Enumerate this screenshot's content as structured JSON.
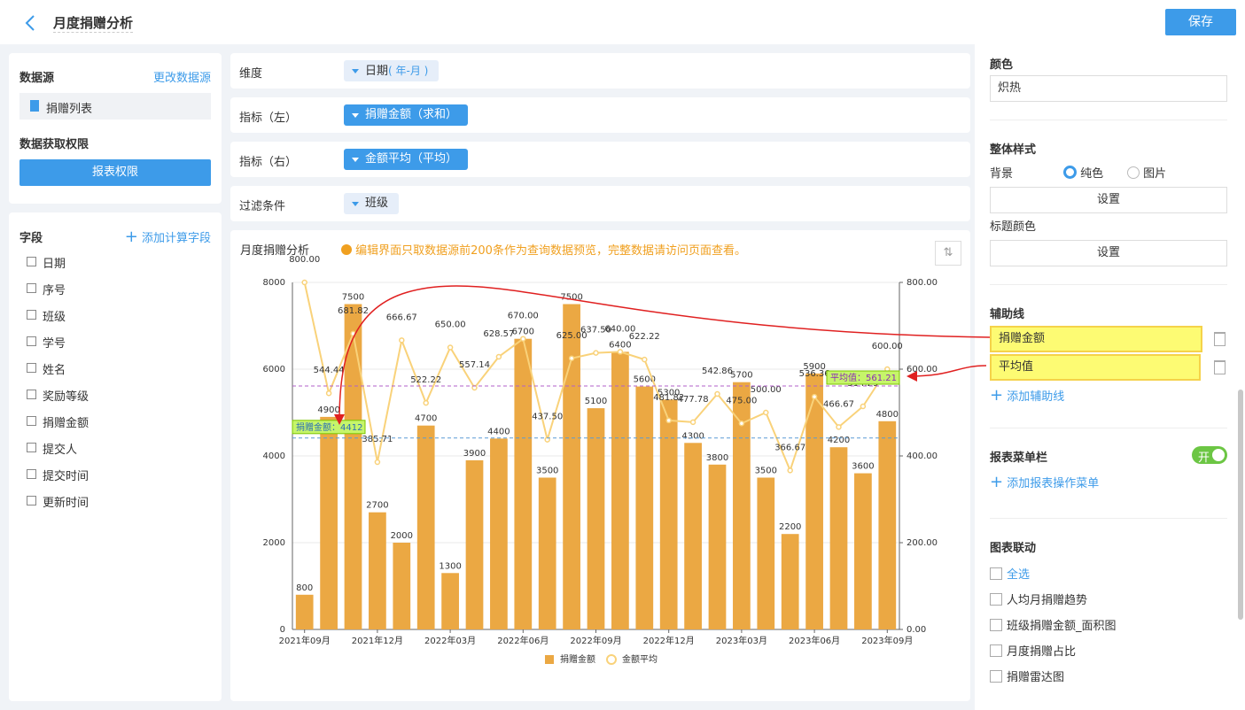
{
  "header": {
    "title": "月度捐赠分析",
    "save": "保存"
  },
  "left_panel": {
    "source_label": "数据源",
    "change_source": "更改数据源",
    "source_name": "捐赠列表",
    "permission_label": "数据获取权限",
    "permission_button": "报表权限",
    "fields_label": "字段",
    "add_field": "添加计算字段",
    "fields": [
      "日期",
      "序号",
      "班级",
      "学号",
      "姓名",
      "奖励等级",
      "捐赠金额",
      "提交人",
      "提交时间",
      "更新时间"
    ]
  },
  "config": {
    "rows": [
      {
        "label": "维度",
        "value": "日期",
        "suffix": "( 年-月 )"
      },
      {
        "label": "指标（左）",
        "value": "捐赠金额（求和）"
      },
      {
        "label": "指标（右）",
        "value": "金额平均（平均）"
      },
      {
        "label": "过滤条件",
        "value": "班级"
      }
    ]
  },
  "chart_panel": {
    "title": "月度捐赠分析",
    "notice": "编辑界面只取数据源前200条作为查询数据预览，完整数据请访问页面查看。"
  },
  "chart_data": {
    "type": "bar",
    "categories": [
      "2021年09月",
      null,
      null,
      "2021年12月",
      null,
      null,
      "2022年03月",
      null,
      null,
      "2022年06月",
      null,
      null,
      "2022年09月",
      null,
      null,
      "2022年12月",
      null,
      null,
      "2023年03月",
      null,
      null,
      "2023年06月",
      null,
      null,
      "2023年09月"
    ],
    "series": [
      {
        "name": "捐赠金额",
        "color": "#eba843",
        "values": [
          800,
          4900,
          7500,
          2700,
          2000,
          4700,
          1300,
          3900,
          4400,
          6700,
          3500,
          7500,
          5100,
          6400,
          5600,
          5300,
          4300,
          3800,
          5700,
          3500,
          2200,
          5900,
          4200,
          3600,
          4800
        ]
      },
      {
        "name": "金额平均",
        "type": "line",
        "axis": "y2",
        "color": "#f9d27a",
        "values": [
          800,
          544.44,
          681.82,
          385.71,
          666.67,
          522.22,
          650,
          557.14,
          628.57,
          670,
          437.5,
          625,
          637.5,
          640,
          622.22,
          481.82,
          477.78,
          542.86,
          475,
          500,
          366.67,
          536.36,
          466.67,
          514.29,
          600
        ],
        "value_labels": [
          "800.00",
          "544.44",
          "681.82",
          "385.71",
          "666.67",
          "522.22",
          "650.00",
          "557.14",
          "628.57",
          "670.00",
          "437.50",
          "625.00",
          "637.50",
          "640.00",
          "622.22",
          "481.82",
          "477.78",
          "542.86",
          "475.00",
          "500.00",
          "366.67",
          "536.36",
          "466.67",
          "514.29",
          "600.00"
        ]
      }
    ],
    "ylim": [
      0,
      8000
    ],
    "yticks": [
      0,
      2000,
      4000,
      6000,
      8000
    ],
    "y2lim": [
      0,
      800
    ],
    "y2ticks": [
      {
        "value": 0,
        "label": "0.00"
      },
      {
        "value": 200,
        "label": "200.00"
      },
      {
        "value": 400,
        "label": "400.00"
      },
      {
        "value": 600,
        "label": "600.00"
      },
      {
        "value": 800,
        "label": "800.00"
      }
    ],
    "grid": true,
    "mark_lines": [
      {
        "value": 4412,
        "label": "捐赠金额：4412",
        "color": "#5b9bd5"
      },
      {
        "value": 561.21,
        "axis": "y2",
        "label": "平均值：561.21",
        "color": "#b05fc9"
      }
    ]
  },
  "right_panel": {
    "color_label": "颜色",
    "color_value": "炽热",
    "style_label": "整体样式",
    "bg_label": "背景",
    "bg_solid": "纯色",
    "bg_image": "图片",
    "set1": "设置",
    "title_color": "标题颜色",
    "set2": "设置",
    "aux_label": "辅助线",
    "aux_lines": [
      "捐赠金额",
      "平均值"
    ],
    "add_aux": "添加辅助线",
    "menu_label": "报表菜单栏",
    "menu_toggle": "开",
    "add_menu": "添加报表操作菜单",
    "link_label": "图表联动",
    "link_items": [
      "全选",
      "人均月捐赠趋势",
      "班级捐赠金额_面积图",
      "月度捐赠占比",
      "捐赠雷达图"
    ]
  }
}
